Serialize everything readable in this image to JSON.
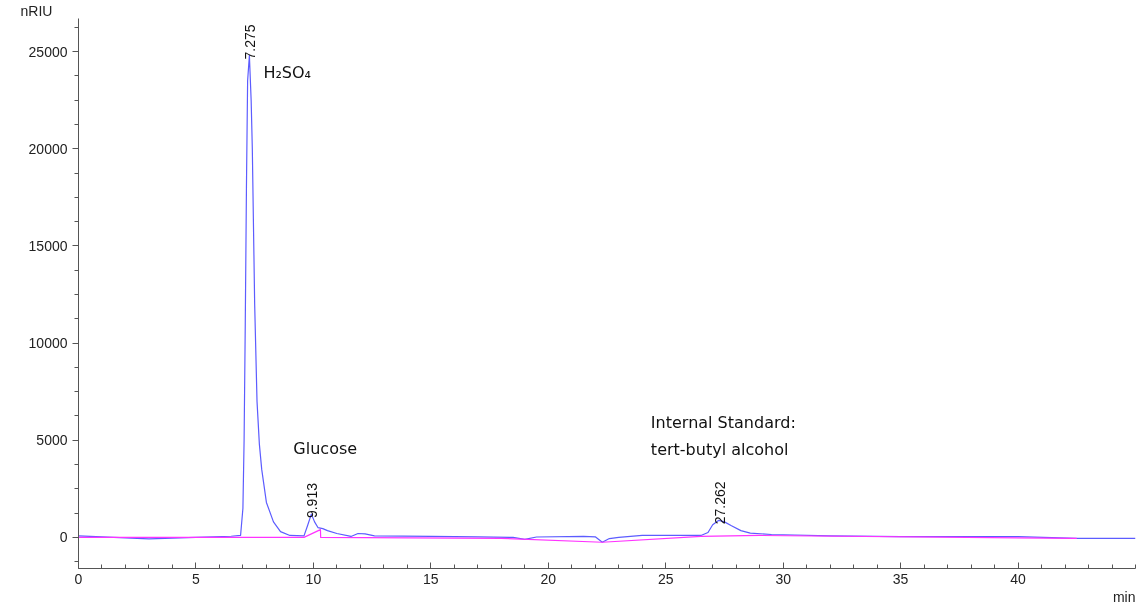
{
  "chart_data": {
    "type": "line",
    "xlabel": "min",
    "ylabel": "nRIU",
    "xlim": [
      0,
      45
    ],
    "ylim": [
      -1600,
      26700
    ],
    "xticks": [
      0,
      5,
      10,
      15,
      20,
      25,
      30,
      35,
      40
    ],
    "yticks": [
      0,
      5000,
      10000,
      15000,
      20000,
      25000
    ],
    "grid": false,
    "marker": "none",
    "line_style": "solid",
    "series": [
      {
        "color": "#5c5cff",
        "x": [
          0,
          3,
          5,
          6.5,
          6.9,
          7.0,
          7.05,
          7.1,
          7.15,
          7.2,
          7.275,
          7.35,
          7.4,
          7.5,
          7.6,
          7.7,
          7.8,
          8.0,
          8.3,
          8.6,
          9.0,
          9.6,
          9.75,
          9.913,
          10.05,
          10.2,
          10.4,
          10.6,
          11.0,
          11.6,
          11.9,
          12.2,
          12.6,
          15,
          17,
          18.5,
          19,
          19.5,
          21.5,
          22.0,
          22.3,
          22.6,
          23,
          24,
          26.5,
          26.8,
          27.0,
          27.262,
          27.5,
          27.8,
          28.2,
          28.6,
          29.5,
          32,
          35,
          40,
          42.5,
          45
        ],
        "values": [
          80,
          -80,
          0,
          60,
          100,
          1500,
          5000,
          11000,
          18000,
          23500,
          24800,
          22500,
          20000,
          12000,
          7000,
          4800,
          3500,
          1800,
          800,
          300,
          100,
          80,
          600,
          1200,
          800,
          500,
          450,
          350,
          200,
          50,
          200,
          180,
          80,
          50,
          30,
          0,
          -100,
          20,
          50,
          30,
          -250,
          -60,
          0,
          100,
          100,
          250,
          650,
          880,
          800,
          600,
          350,
          220,
          150,
          80,
          40,
          40,
          -50,
          -50
        ]
      },
      {
        "color": "#ff33ff",
        "x": [
          0,
          9.6,
          10.3,
          10.31,
          18,
          22.3,
          26.5,
          29,
          42.5
        ],
        "values": [
          0,
          0,
          400,
          0,
          -50,
          -250,
          50,
          100,
          -50
        ]
      }
    ],
    "annotations": [
      {
        "text": "7.275",
        "x": 7.275,
        "y": 24800
      },
      {
        "text": "9.913",
        "x": 9.913,
        "y": 1200
      },
      {
        "text": "27.262",
        "x": 27.262,
        "y": 880
      },
      "H₂SO₄",
      "Glucose",
      "Internal Standard:\ntert-butyl alcohol"
    ]
  }
}
